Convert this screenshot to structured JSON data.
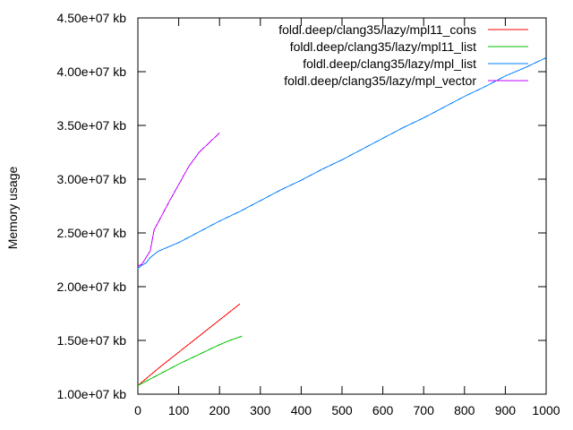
{
  "chart_data": {
    "type": "line",
    "title": "",
    "xlabel": "",
    "ylabel": "Memory usage",
    "xlim": [
      0,
      1000
    ],
    "ylim": [
      10000000,
      45000000
    ],
    "grid": false,
    "legend_position": "top-right",
    "x_ticks": [
      0,
      100,
      200,
      300,
      400,
      500,
      600,
      700,
      800,
      900,
      1000
    ],
    "x_tick_labels": [
      "0",
      "100",
      "200",
      "300",
      "400",
      "500",
      "600",
      "700",
      "800",
      "900",
      "1000"
    ],
    "y_ticks": [
      10000000,
      15000000,
      20000000,
      25000000,
      30000000,
      35000000,
      40000000,
      45000000
    ],
    "y_tick_labels": [
      "1.00e+07 kb",
      "1.50e+07 kb",
      "2.00e+07 kb",
      "2.50e+07 kb",
      "3.00e+07 kb",
      "3.50e+07 kb",
      "4.00e+07 kb",
      "4.50e+07 kb"
    ],
    "series": [
      {
        "name": "foldl.deep/clang35/lazy/mpl11_cons",
        "color": "#ff0000",
        "x": [
          0,
          25,
          50,
          75,
          100,
          125,
          150,
          175,
          200,
          225,
          250
        ],
        "y": [
          10800000,
          11600000,
          12400000,
          13150000,
          13900000,
          14650000,
          15400000,
          16150000,
          16900000,
          17650000,
          18400000
        ]
      },
      {
        "name": "foldl.deep/clang35/lazy/mpl11_list",
        "color": "#00c000",
        "x": [
          0,
          25,
          50,
          75,
          100,
          125,
          150,
          175,
          200,
          225,
          255
        ],
        "y": [
          10800000,
          11300000,
          11800000,
          12300000,
          12800000,
          13250000,
          13700000,
          14150000,
          14600000,
          15000000,
          15400000
        ]
      },
      {
        "name": "foldl.deep/clang35/lazy/mpl_list",
        "color": "#0080ff",
        "x": [
          0,
          10,
          20,
          30,
          40,
          50,
          75,
          100,
          150,
          200,
          250,
          300,
          350,
          400,
          450,
          500,
          550,
          600,
          650,
          700,
          750,
          800,
          850,
          900,
          950,
          1000
        ],
        "y": [
          21700000,
          22000000,
          22200000,
          22700000,
          23000000,
          23300000,
          23700000,
          24100000,
          25100000,
          26100000,
          27000000,
          28000000,
          29000000,
          29900000,
          30900000,
          31800000,
          32800000,
          33800000,
          34800000,
          35700000,
          36700000,
          37700000,
          38600000,
          39600000,
          40400000,
          41300000
        ]
      },
      {
        "name": "foldl.deep/clang35/lazy/mpl_vector",
        "color": "#c000ff",
        "x": [
          0,
          10,
          20,
          30,
          40,
          50,
          75,
          100,
          125,
          150,
          175,
          200
        ],
        "y": [
          21900000,
          22100000,
          22700000,
          23300000,
          25300000,
          26000000,
          27800000,
          29500000,
          31200000,
          32500000,
          33400000,
          34300000
        ]
      }
    ]
  }
}
